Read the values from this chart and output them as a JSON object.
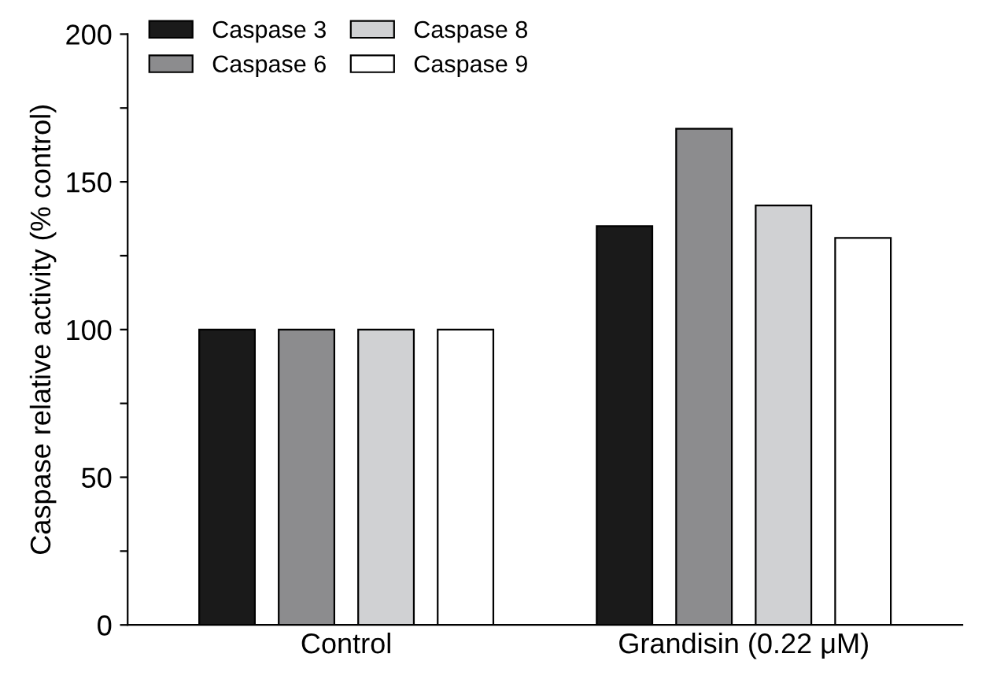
{
  "chart_data": {
    "type": "bar",
    "ylabel": "Caspase relative activity (% control)",
    "categories": [
      "Control",
      "Grandisin (0.22 μM)"
    ],
    "series": [
      {
        "name": "Caspase 3",
        "color": "#1a1a1a",
        "values": [
          100,
          135
        ]
      },
      {
        "name": "Caspase 6",
        "color": "#8c8c8e",
        "values": [
          100,
          168
        ]
      },
      {
        "name": "Caspase 8",
        "color": "#d0d1d3",
        "values": [
          100,
          142
        ]
      },
      {
        "name": "Caspase 9",
        "color": "#ffffff",
        "values": [
          100,
          131
        ]
      }
    ],
    "ylim": [
      0,
      200
    ],
    "yticks": [
      0,
      {
        "value": 25,
        "label": null
      },
      50,
      {
        "value": 75,
        "label": null
      },
      100,
      {
        "value": 125,
        "label": null
      },
      150,
      {
        "value": 175,
        "label": null
      },
      200
    ],
    "grid": false,
    "legend": "top left"
  }
}
